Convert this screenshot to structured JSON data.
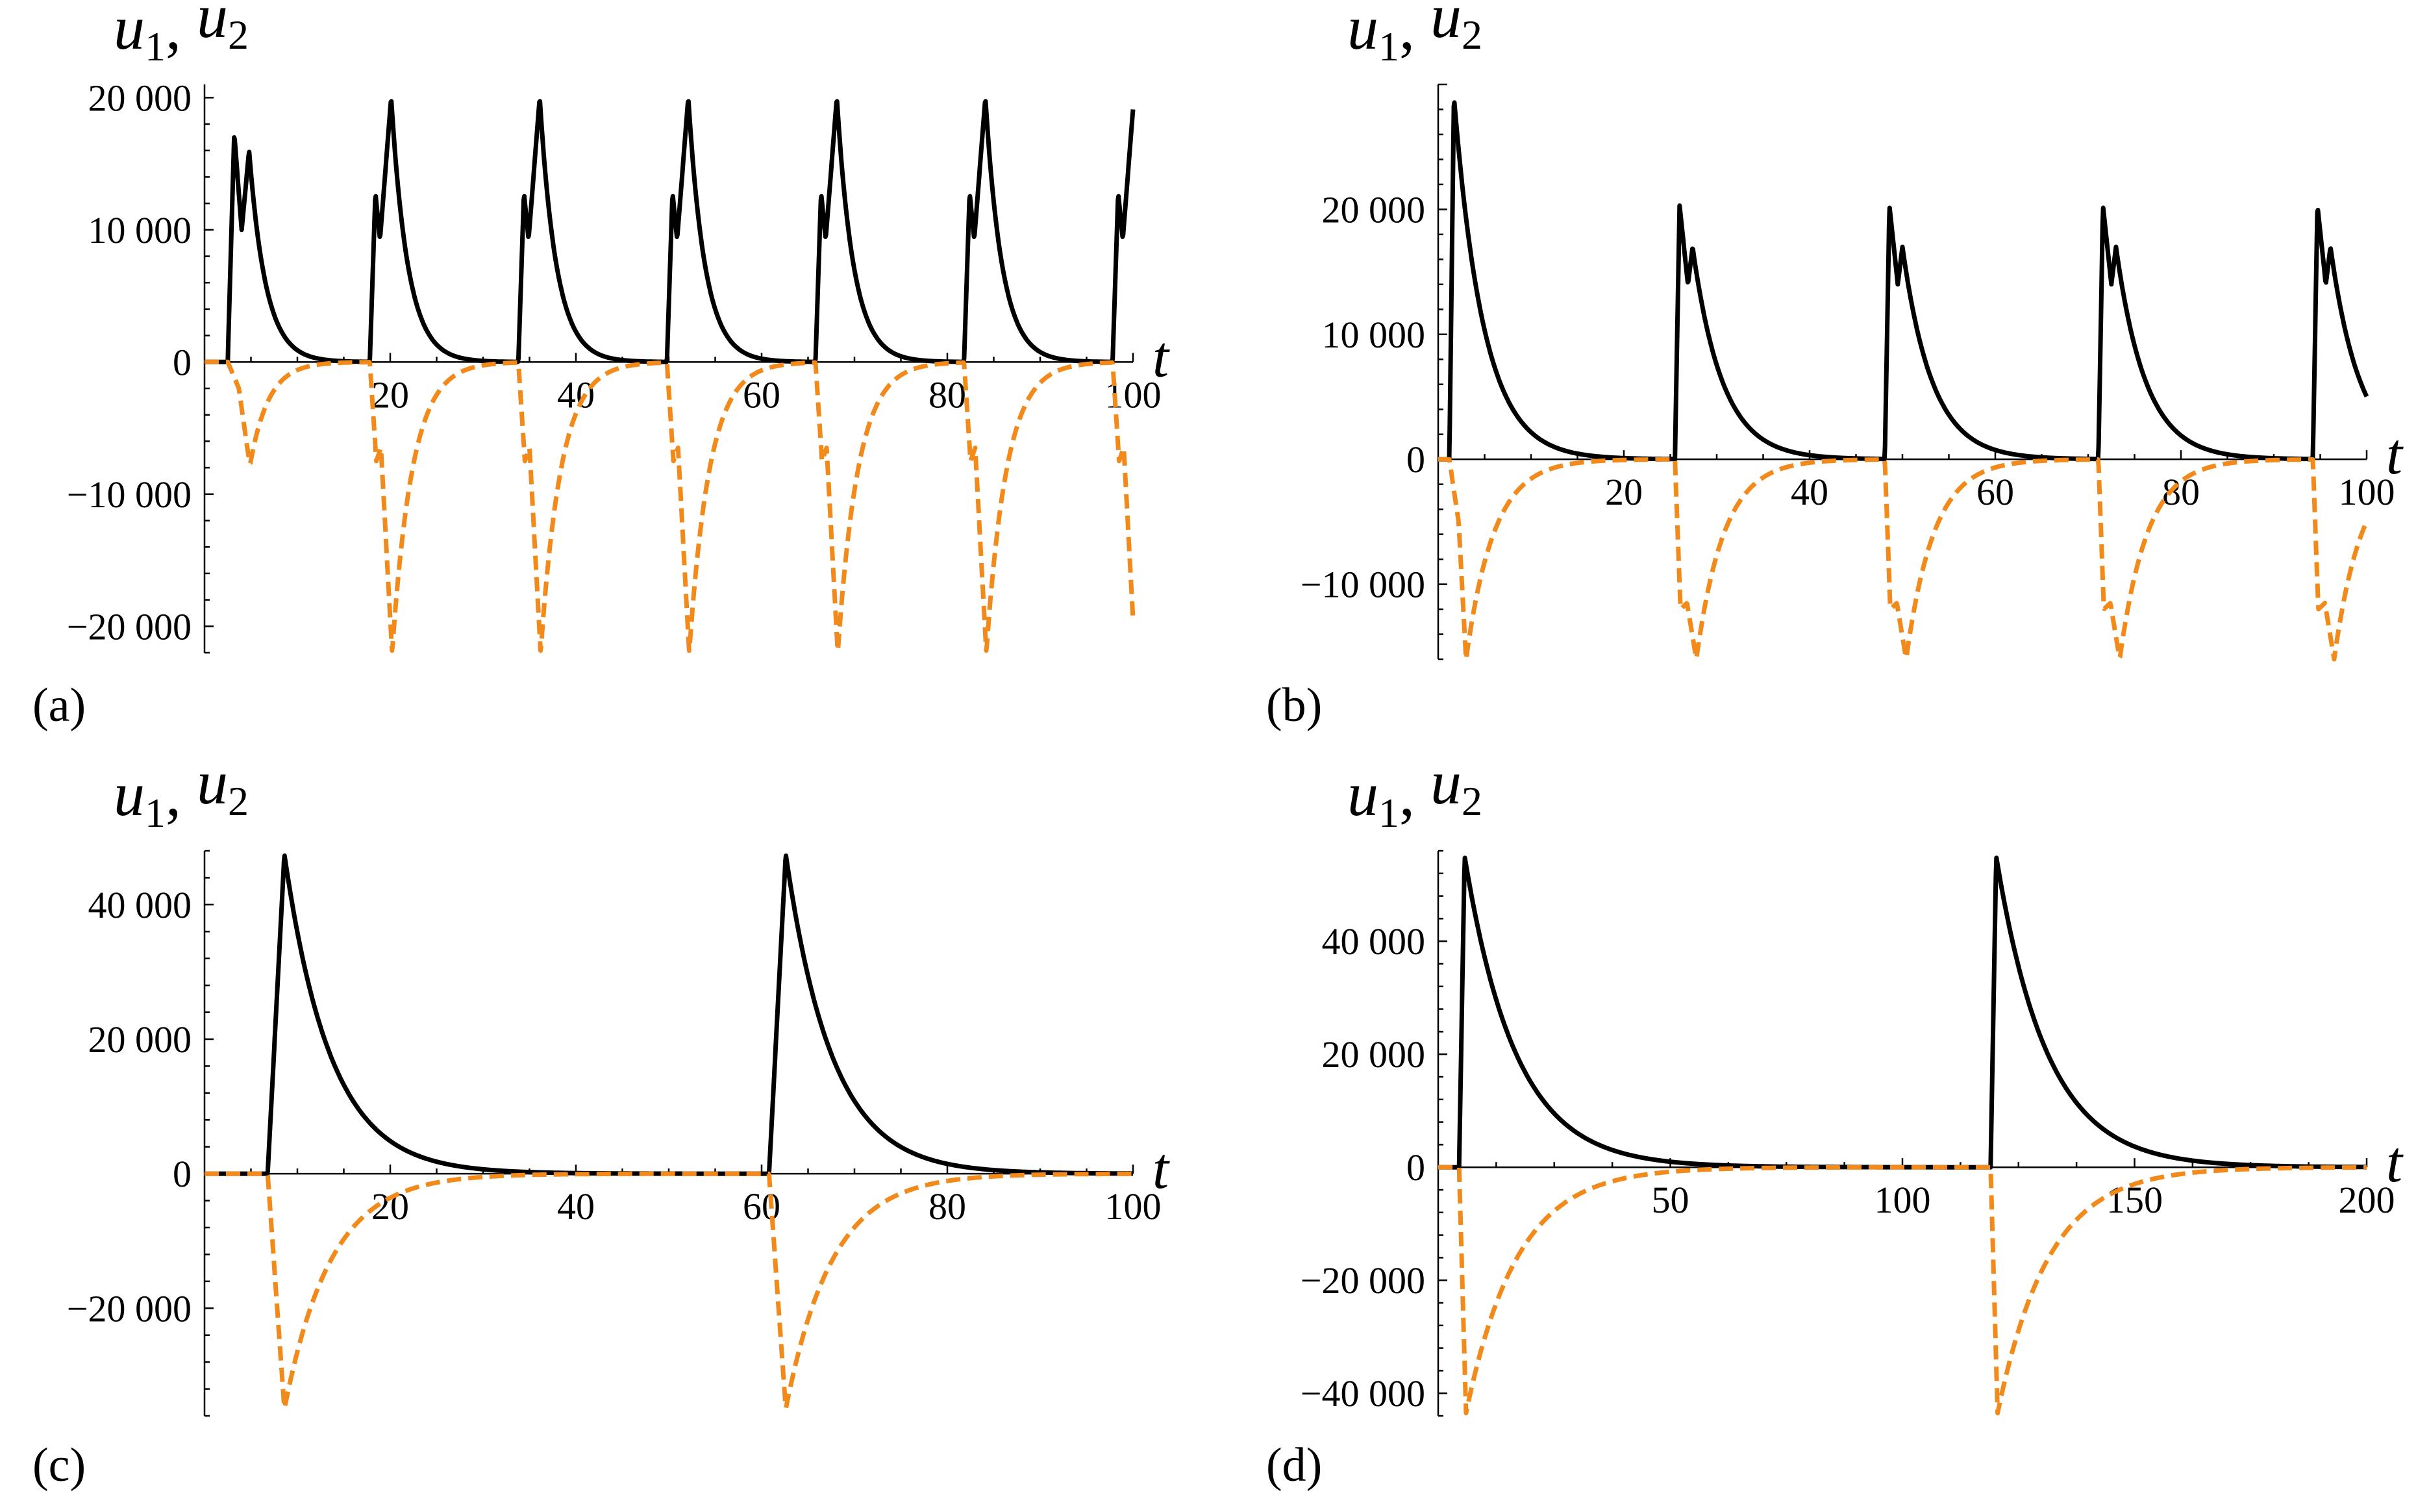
{
  "chart_data": [
    {
      "type": "line",
      "panel_label": "(a)",
      "title": "u1, u2",
      "title_parts": {
        "var1": "u",
        "sub1": "1",
        "sep": ", ",
        "var2": "u",
        "sub2": "2"
      },
      "xlabel": "t",
      "xlim": [
        0,
        100
      ],
      "ylim": [
        -22000,
        21000
      ],
      "xticks": [
        {
          "v": 20,
          "label": "20"
        },
        {
          "v": 40,
          "label": "40"
        },
        {
          "v": 60,
          "label": "60"
        },
        {
          "v": 80,
          "label": "80"
        },
        {
          "v": 100,
          "label": "100"
        }
      ],
      "yticks": [
        {
          "v": 20000,
          "label": "20 000"
        },
        {
          "v": 10000,
          "label": "10 000"
        },
        {
          "v": 0,
          "label": "0"
        },
        {
          "v": -10000,
          "label": "−10 000"
        },
        {
          "v": -20000,
          "label": "−20 000"
        }
      ],
      "series": [
        {
          "name": "u1",
          "style": "solid",
          "color": "#000000",
          "events": [
            {
              "start": 2.5,
              "peaks": [
                {
                  "dt": 0.7,
                  "val": 17300
                },
                {
                  "dt": 1.5,
                  "val": 10000
                },
                {
                  "dt": 2.3,
                  "val": 16000
                }
              ],
              "tau": 1.8
            },
            {
              "start": 17.8,
              "peaks": [
                {
                  "dt": 0.6,
                  "val": 12800
                },
                {
                  "dt": 1.1,
                  "val": 9300
                },
                {
                  "dt": 2.3,
                  "val": 20000
                }
              ],
              "tau": 1.8
            },
            {
              "start": 33.8,
              "peaks": [
                {
                  "dt": 0.6,
                  "val": 12800
                },
                {
                  "dt": 1.1,
                  "val": 9300
                },
                {
                  "dt": 2.3,
                  "val": 20000
                }
              ],
              "tau": 1.8
            },
            {
              "start": 49.8,
              "peaks": [
                {
                  "dt": 0.6,
                  "val": 12800
                },
                {
                  "dt": 1.1,
                  "val": 9300
                },
                {
                  "dt": 2.3,
                  "val": 20000
                }
              ],
              "tau": 1.8
            },
            {
              "start": 65.8,
              "peaks": [
                {
                  "dt": 0.6,
                  "val": 12800
                },
                {
                  "dt": 1.1,
                  "val": 9300
                },
                {
                  "dt": 2.3,
                  "val": 20000
                }
              ],
              "tau": 1.8
            },
            {
              "start": 81.8,
              "peaks": [
                {
                  "dt": 0.6,
                  "val": 12800
                },
                {
                  "dt": 1.1,
                  "val": 9300
                },
                {
                  "dt": 2.3,
                  "val": 20000
                }
              ],
              "tau": 1.8
            },
            {
              "start": 97.8,
              "peaks": [
                {
                  "dt": 0.6,
                  "val": 12800
                },
                {
                  "dt": 1.1,
                  "val": 9300
                },
                {
                  "dt": 2.3,
                  "val": 20000
                }
              ],
              "tau": 1.8
            }
          ]
        },
        {
          "name": "u2",
          "style": "dashed",
          "color": "#f28a1b",
          "events": [
            {
              "start": 2.5,
              "peaks": [
                {
                  "dt": 1.2,
                  "val": -2000
                },
                {
                  "dt": 2.0,
                  "val": -6000
                },
                {
                  "dt": 2.4,
                  "val": -7800
                }
              ],
              "tau": 2.0
            },
            {
              "start": 17.8,
              "peaks": [
                {
                  "dt": 0.7,
                  "val": -7500
                },
                {
                  "dt": 1.2,
                  "val": -6500
                },
                {
                  "dt": 2.4,
                  "val": -22000
                }
              ],
              "tau": 2.2
            },
            {
              "start": 33.8,
              "peaks": [
                {
                  "dt": 0.7,
                  "val": -7500
                },
                {
                  "dt": 1.2,
                  "val": -6500
                },
                {
                  "dt": 2.4,
                  "val": -22000
                }
              ],
              "tau": 2.2
            },
            {
              "start": 49.8,
              "peaks": [
                {
                  "dt": 0.7,
                  "val": -7500
                },
                {
                  "dt": 1.2,
                  "val": -6500
                },
                {
                  "dt": 2.4,
                  "val": -22000
                }
              ],
              "tau": 2.2
            },
            {
              "start": 65.8,
              "peaks": [
                {
                  "dt": 0.7,
                  "val": -7500
                },
                {
                  "dt": 1.2,
                  "val": -6500
                },
                {
                  "dt": 2.4,
                  "val": -22000
                }
              ],
              "tau": 2.2
            },
            {
              "start": 81.8,
              "peaks": [
                {
                  "dt": 0.7,
                  "val": -7500
                },
                {
                  "dt": 1.2,
                  "val": -6500
                },
                {
                  "dt": 2.4,
                  "val": -22000
                }
              ],
              "tau": 2.2
            },
            {
              "start": 97.8,
              "peaks": [
                {
                  "dt": 0.7,
                  "val": -7500
                },
                {
                  "dt": 1.2,
                  "val": -6500
                },
                {
                  "dt": 2.4,
                  "val": -22000
                }
              ],
              "tau": 2.2
            }
          ]
        }
      ]
    },
    {
      "type": "line",
      "panel_label": "(b)",
      "title": "u1, u2",
      "title_parts": {
        "var1": "u",
        "sub1": "1",
        "sep": ", ",
        "var2": "u",
        "sub2": "2"
      },
      "xlabel": "t",
      "xlim": [
        0,
        100
      ],
      "ylim": [
        -16000,
        30000
      ],
      "xticks": [
        {
          "v": 20,
          "label": "20"
        },
        {
          "v": 40,
          "label": "40"
        },
        {
          "v": 60,
          "label": "60"
        },
        {
          "v": 80,
          "label": "80"
        },
        {
          "v": 100,
          "label": "100"
        }
      ],
      "yticks": [
        {
          "v": 20000,
          "label": "20 000"
        },
        {
          "v": 10000,
          "label": "10 000"
        },
        {
          "v": 0,
          "label": "0"
        },
        {
          "v": -10000,
          "label": "−10 000"
        }
      ],
      "series": [
        {
          "name": "u1",
          "style": "solid",
          "color": "#000000",
          "events": [
            {
              "start": 1.2,
              "peaks": [
                {
                  "dt": 0.5,
                  "val": 29000
                }
              ],
              "tau": 3.2
            },
            {
              "start": 25.5,
              "peaks": [
                {
                  "dt": 0.5,
                  "val": 20300
                },
                {
                  "dt": 1.4,
                  "val": 14000
                },
                {
                  "dt": 1.9,
                  "val": 17000
                }
              ],
              "tau": 3.2
            },
            {
              "start": 48.1,
              "peaks": [
                {
                  "dt": 0.5,
                  "val": 20300
                },
                {
                  "dt": 1.4,
                  "val": 14000
                },
                {
                  "dt": 1.9,
                  "val": 17000
                }
              ],
              "tau": 3.2
            },
            {
              "start": 71.1,
              "peaks": [
                {
                  "dt": 0.5,
                  "val": 20300
                },
                {
                  "dt": 1.4,
                  "val": 14000
                },
                {
                  "dt": 1.9,
                  "val": 17000
                }
              ],
              "tau": 3.2
            },
            {
              "start": 94.2,
              "peaks": [
                {
                  "dt": 0.5,
                  "val": 20300
                },
                {
                  "dt": 1.4,
                  "val": 14000
                },
                {
                  "dt": 1.9,
                  "val": 17000
                }
              ],
              "tau": 3.2
            }
          ]
        },
        {
          "name": "u2",
          "style": "dashed",
          "color": "#f28a1b",
          "events": [
            {
              "start": 1.2,
              "peaks": [
                {
                  "dt": 1.0,
                  "val": -5000
                },
                {
                  "dt": 1.8,
                  "val": -16000
                }
              ],
              "tau": 3.0
            },
            {
              "start": 25.5,
              "peaks": [
                {
                  "dt": 0.6,
                  "val": -12000
                },
                {
                  "dt": 1.3,
                  "val": -11500
                },
                {
                  "dt": 2.3,
                  "val": -16000
                }
              ],
              "tau": 3.0
            },
            {
              "start": 48.1,
              "peaks": [
                {
                  "dt": 0.6,
                  "val": -12000
                },
                {
                  "dt": 1.3,
                  "val": -11500
                },
                {
                  "dt": 2.3,
                  "val": -16000
                }
              ],
              "tau": 3.0
            },
            {
              "start": 71.1,
              "peaks": [
                {
                  "dt": 0.6,
                  "val": -12000
                },
                {
                  "dt": 1.3,
                  "val": -11500
                },
                {
                  "dt": 2.3,
                  "val": -16000
                }
              ],
              "tau": 3.0
            },
            {
              "start": 94.2,
              "peaks": [
                {
                  "dt": 0.6,
                  "val": -12000
                },
                {
                  "dt": 1.3,
                  "val": -11500
                },
                {
                  "dt": 2.3,
                  "val": -16000
                }
              ],
              "tau": 3.0
            }
          ]
        }
      ]
    },
    {
      "type": "line",
      "panel_label": "(c)",
      "title": "u1, u2",
      "title_parts": {
        "var1": "u",
        "sub1": "1",
        "sep": ", ",
        "var2": "u",
        "sub2": "2"
      },
      "xlabel": "t",
      "xlim": [
        0,
        100
      ],
      "ylim": [
        -36000,
        48000
      ],
      "xticks": [
        {
          "v": 20,
          "label": "20"
        },
        {
          "v": 40,
          "label": "40"
        },
        {
          "v": 60,
          "label": "60"
        },
        {
          "v": 80,
          "label": "80"
        },
        {
          "v": 100,
          "label": "100"
        }
      ],
      "yticks": [
        {
          "v": 40000,
          "label": "40 000"
        },
        {
          "v": 20000,
          "label": "20 000"
        },
        {
          "v": 0,
          "label": "0"
        },
        {
          "v": -20000,
          "label": "−20 000"
        }
      ],
      "series": [
        {
          "name": "u1",
          "style": "solid",
          "color": "#000000",
          "events": [
            {
              "start": 6.8,
              "peaks": [
                {
                  "dt": 1.8,
                  "val": 47500
                }
              ],
              "tau": 5.0
            },
            {
              "start": 60.8,
              "peaks": [
                {
                  "dt": 1.8,
                  "val": 47500
                }
              ],
              "tau": 5.0
            }
          ]
        },
        {
          "name": "u2",
          "style": "dashed",
          "color": "#f28a1b",
          "events": [
            {
              "start": 6.8,
              "peaks": [
                {
                  "dt": 1.8,
                  "val": -35000
                }
              ],
              "tau": 5.0
            },
            {
              "start": 60.8,
              "peaks": [
                {
                  "dt": 1.8,
                  "val": -35000
                }
              ],
              "tau": 5.0
            }
          ]
        }
      ]
    },
    {
      "type": "line",
      "panel_label": "(d)",
      "title": "u1, u2",
      "title_parts": {
        "var1": "u",
        "sub1": "1",
        "sep": ", ",
        "var2": "u",
        "sub2": "2"
      },
      "xlabel": "t",
      "xlim": [
        0,
        200
      ],
      "ylim": [
        -44000,
        56000
      ],
      "xticks": [
        {
          "v": 50,
          "label": "50"
        },
        {
          "v": 100,
          "label": "100"
        },
        {
          "v": 150,
          "label": "150"
        },
        {
          "v": 200,
          "label": "200"
        }
      ],
      "yticks": [
        {
          "v": 40000,
          "label": "40 000"
        },
        {
          "v": 20000,
          "label": "20 000"
        },
        {
          "v": 0,
          "label": "0"
        },
        {
          "v": -20000,
          "label": "−20 000"
        },
        {
          "v": -40000,
          "label": "−40 000"
        }
      ],
      "series": [
        {
          "name": "u1",
          "style": "solid",
          "color": "#000000",
          "events": [
            {
              "start": 4.5,
              "peaks": [
                {
                  "dt": 1.2,
                  "val": 55000
                }
              ],
              "tau": 11.0
            },
            {
              "start": 119.0,
              "peaks": [
                {
                  "dt": 1.2,
                  "val": 55000
                }
              ],
              "tau": 11.0
            }
          ]
        },
        {
          "name": "u2",
          "style": "dashed",
          "color": "#f28a1b",
          "events": [
            {
              "start": 4.5,
              "peaks": [
                {
                  "dt": 1.5,
                  "val": -43500
                }
              ],
              "tau": 11.0
            },
            {
              "start": 119.0,
              "peaks": [
                {
                  "dt": 1.5,
                  "val": -43500
                }
              ],
              "tau": 11.0
            }
          ]
        }
      ]
    }
  ]
}
